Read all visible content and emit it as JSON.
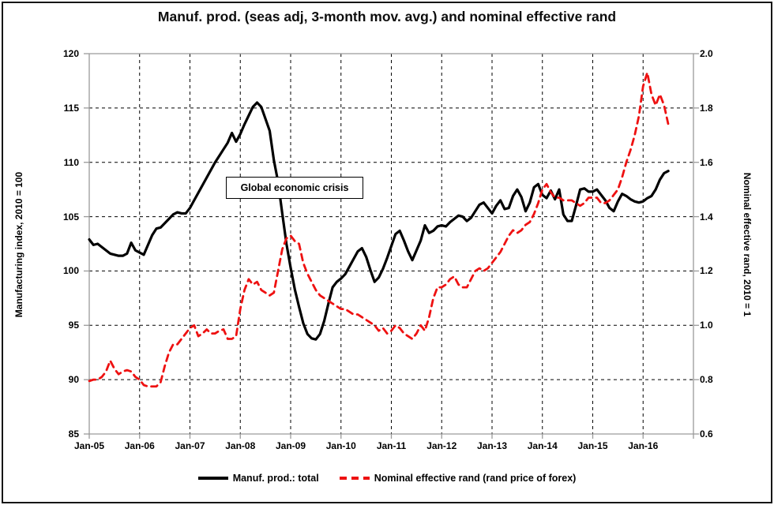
{
  "chart_data": {
    "type": "line",
    "title": "Manuf. prod. (seas adj, 3-month mov. avg.) and nominal effective rand",
    "annotation": "Global economic crisis",
    "grid": "dashed",
    "legend_position": "bottom-center",
    "x_tick_labels": [
      "Jan-05",
      "Jan-06",
      "Jan-07",
      "Jan-08",
      "Jan-09",
      "Jan-10",
      "Jan-11",
      "Jan-12",
      "Jan-13",
      "Jan-14",
      "Jan-15",
      "Jan-16"
    ],
    "x_start": "Jan-2005",
    "x_frequency": "monthly",
    "left_axis": {
      "label": "Manufacturing index, 2010 = 100",
      "min": 85,
      "max": 120,
      "step": 5,
      "ticks": [
        "120",
        "115",
        "110",
        "105",
        "100",
        "95",
        "90",
        "85"
      ]
    },
    "right_axis": {
      "label": "Nominal effective rand, 2010 = 1",
      "min": 0.6,
      "max": 2.0,
      "step": 0.2,
      "ticks": [
        "2.0",
        "1.8",
        "1.6",
        "1.4",
        "1.2",
        "1.0",
        "0.8",
        "0.6"
      ]
    },
    "series": [
      {
        "name": "Manuf. prod.: total",
        "axis": "left",
        "color": "#000000",
        "style": "solid",
        "values": [
          102.9,
          102.4,
          102.5,
          102.2,
          101.9,
          101.6,
          101.5,
          101.4,
          101.4,
          101.6,
          102.6,
          101.9,
          101.7,
          101.5,
          102.4,
          103.3,
          103.9,
          104.0,
          104.4,
          104.8,
          105.2,
          105.4,
          105.3,
          105.3,
          105.8,
          106.5,
          107.2,
          107.9,
          108.6,
          109.3,
          110.0,
          110.6,
          111.2,
          111.8,
          112.7,
          111.9,
          112.6,
          113.5,
          114.3,
          115.1,
          115.5,
          115.1,
          114.0,
          112.9,
          110.2,
          108.2,
          105.3,
          102.5,
          100.3,
          98.3,
          96.7,
          95.2,
          94.2,
          93.8,
          93.7,
          94.2,
          95.4,
          97.0,
          98.5,
          99.0,
          99.3,
          99.7,
          100.4,
          101.1,
          101.8,
          102.1,
          101.3,
          100.1,
          99.0,
          99.4,
          100.2,
          101.2,
          102.3,
          103.4,
          103.7,
          102.8,
          101.8,
          101.0,
          101.9,
          102.8,
          104.2,
          103.5,
          103.7,
          104.1,
          104.2,
          104.1,
          104.5,
          104.8,
          105.1,
          105.0,
          104.6,
          104.9,
          105.5,
          106.1,
          106.3,
          105.8,
          105.3,
          106.0,
          106.5,
          105.7,
          105.8,
          106.9,
          107.5,
          106.8,
          105.5,
          106.3,
          107.7,
          108.0,
          107.0,
          106.7,
          107.4,
          106.6,
          107.5,
          105.2,
          104.6,
          104.6,
          106.0,
          107.5,
          107.6,
          107.3,
          107.3,
          107.5,
          107.0,
          106.5,
          105.8,
          105.5,
          106.4,
          107.1,
          106.9,
          106.6,
          106.4,
          106.3,
          106.4,
          106.7,
          106.9,
          107.5,
          108.4,
          109.0,
          109.2
        ]
      },
      {
        "name": "Nominal effective rand (rand price of forex)",
        "axis": "right",
        "color": "#ee1111",
        "style": "dashed",
        "values": [
          0.795,
          0.8,
          0.8,
          0.81,
          0.83,
          0.87,
          0.84,
          0.82,
          0.83,
          0.835,
          0.83,
          0.81,
          0.8,
          0.78,
          0.775,
          0.775,
          0.775,
          0.79,
          0.85,
          0.9,
          0.93,
          0.93,
          0.95,
          0.97,
          0.99,
          1.0,
          0.96,
          0.97,
          0.985,
          0.97,
          0.97,
          0.98,
          0.985,
          0.95,
          0.95,
          0.96,
          1.06,
          1.13,
          1.17,
          1.15,
          1.16,
          1.13,
          1.12,
          1.11,
          1.12,
          1.2,
          1.28,
          1.32,
          1.33,
          1.31,
          1.3,
          1.23,
          1.19,
          1.16,
          1.13,
          1.11,
          1.1,
          1.09,
          1.08,
          1.07,
          1.06,
          1.06,
          1.05,
          1.04,
          1.04,
          1.03,
          1.02,
          1.01,
          1.0,
          0.98,
          0.99,
          0.97,
          0.98,
          1.0,
          0.99,
          0.97,
          0.96,
          0.95,
          0.97,
          1.0,
          0.98,
          1.03,
          1.1,
          1.14,
          1.14,
          1.15,
          1.17,
          1.18,
          1.15,
          1.14,
          1.14,
          1.17,
          1.2,
          1.21,
          1.2,
          1.21,
          1.23,
          1.25,
          1.27,
          1.3,
          1.33,
          1.35,
          1.34,
          1.35,
          1.37,
          1.38,
          1.41,
          1.45,
          1.5,
          1.52,
          1.49,
          1.47,
          1.47,
          1.46,
          1.46,
          1.46,
          1.45,
          1.44,
          1.45,
          1.47,
          1.47,
          1.47,
          1.45,
          1.45,
          1.46,
          1.48,
          1.5,
          1.545,
          1.6,
          1.645,
          1.7,
          1.77,
          1.88,
          1.93,
          1.85,
          1.81,
          1.85,
          1.81,
          1.74
        ]
      }
    ],
    "colors": {
      "grid": "#000000",
      "axis_line": "#9a9a9a",
      "background": "#ffffff"
    }
  }
}
